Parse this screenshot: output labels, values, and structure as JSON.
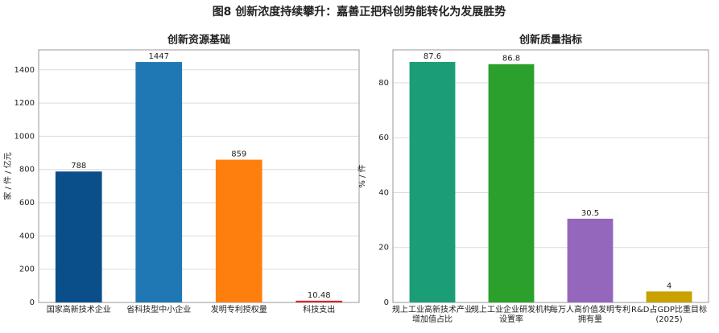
{
  "title": "图8 创新浓度持续攀升：嘉善正把科创势能转化为发展胜势",
  "chart_data": [
    {
      "type": "bar",
      "title": "创新资源基础",
      "ylabel": "家 / 件 / 亿元",
      "categories": [
        "国家高新技术企业",
        "省科技型中小企业",
        "发明专利授权量",
        "科技支出"
      ],
      "values": [
        788,
        1447,
        859,
        10.48
      ],
      "colors": [
        "#0b4f8a",
        "#1f77b4",
        "#ff7f0e",
        "#d62728"
      ],
      "ylim": [
        0,
        1520
      ],
      "yticks": [
        0,
        200,
        400,
        600,
        800,
        1000,
        1200,
        1400
      ],
      "grid": true
    },
    {
      "type": "bar",
      "title": "创新质量指标",
      "ylabel": "% / 件",
      "categories": [
        [
          "规上工业高新技术产业",
          "增加值占比"
        ],
        [
          "规上工业企业研发机构",
          "设置率"
        ],
        [
          "每万人高价值发明专利",
          "拥有量"
        ],
        [
          "R&D占GDP比重目标",
          "(2025)"
        ]
      ],
      "values": [
        87.6,
        86.8,
        30.5,
        4
      ],
      "colors": [
        "#1b9e77",
        "#2ca02c",
        "#9467bd",
        "#c9a100"
      ],
      "ylim": [
        0,
        92
      ],
      "yticks": [
        0,
        20,
        40,
        60,
        80
      ],
      "grid": true
    }
  ]
}
